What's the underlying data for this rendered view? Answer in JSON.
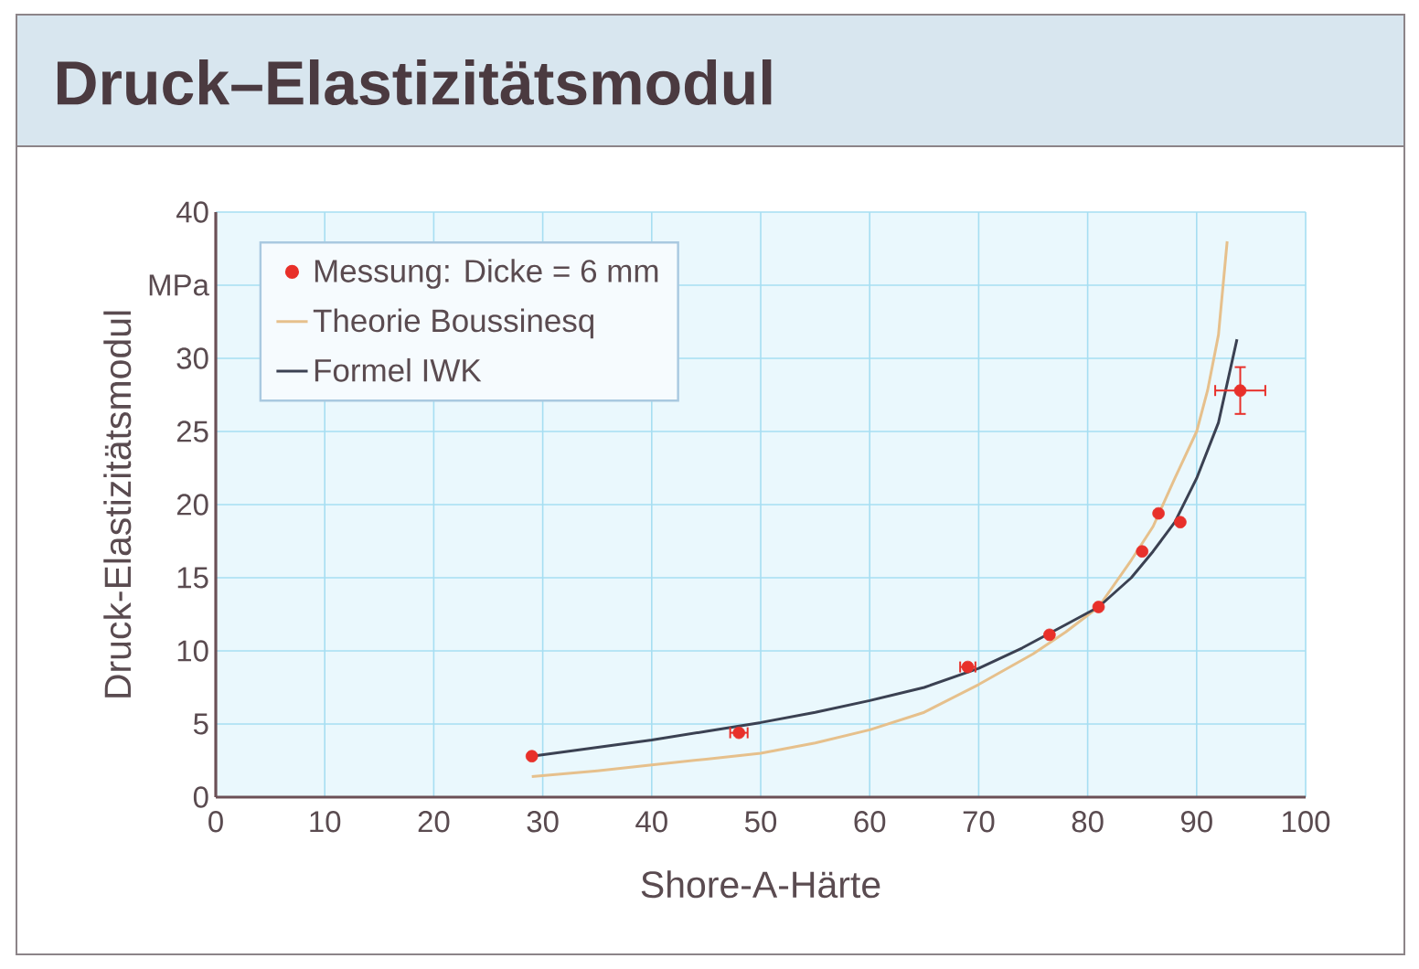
{
  "chart_data": {
    "type": "scatter",
    "title": "Druck–Elastizitätsmodul",
    "xlabel": "Shore-A-Härte",
    "ylabel": "Druck-Elastizitätsmodul",
    "xlim": [
      0,
      100
    ],
    "ylim": [
      0,
      40
    ],
    "xticks": [
      0,
      10,
      20,
      30,
      40,
      50,
      60,
      70,
      80,
      90,
      100
    ],
    "yticks": [
      0,
      5,
      10,
      15,
      20,
      25,
      30,
      {
        "value": 35,
        "label": "MPa"
      },
      40
    ],
    "grid": true,
    "legend": "top left",
    "line_style": "solid",
    "series": [
      {
        "name": "Messung: Dicke = 6 mm",
        "marker": "circle",
        "color": "#e8302a",
        "x": [
          29,
          48,
          69,
          76.5,
          81,
          85,
          86.5,
          88.5,
          94
        ],
        "values": [
          2.8,
          4.4,
          8.9,
          11.1,
          13,
          16.8,
          19.4,
          18.8,
          27.8
        ],
        "xerrors": [
          null,
          0.8,
          0.7,
          null,
          null,
          null,
          null,
          null,
          2.3
        ],
        "errors": [
          null,
          null,
          null,
          null,
          null,
          null,
          null,
          null,
          1.6
        ]
      },
      {
        "name": "Theorie Boussinesq",
        "type": "line",
        "marker": "none",
        "color": "#e6c08c",
        "x": [
          29,
          35,
          40,
          45,
          50,
          55,
          60,
          65,
          70,
          75,
          78,
          81,
          84,
          86,
          88,
          90,
          91,
          92,
          92.8
        ],
        "values": [
          1.4,
          1.8,
          2.2,
          2.6,
          3.0,
          3.7,
          4.6,
          5.8,
          7.7,
          9.8,
          11.3,
          13.0,
          16.2,
          18.5,
          21.8,
          25.0,
          27.8,
          31.6,
          38
        ]
      },
      {
        "name": "Formel IWK",
        "type": "line",
        "marker": "none",
        "color": "#3b4152",
        "x": [
          29,
          35,
          40,
          45,
          50,
          55,
          60,
          65,
          70,
          74,
          78,
          81,
          84,
          86,
          88,
          90,
          92,
          93.7
        ],
        "values": [
          2.8,
          3.4,
          3.9,
          4.5,
          5.1,
          5.8,
          6.6,
          7.5,
          8.8,
          10.2,
          11.8,
          13.0,
          15.0,
          16.8,
          18.8,
          21.8,
          25.6,
          31.3
        ]
      }
    ]
  }
}
